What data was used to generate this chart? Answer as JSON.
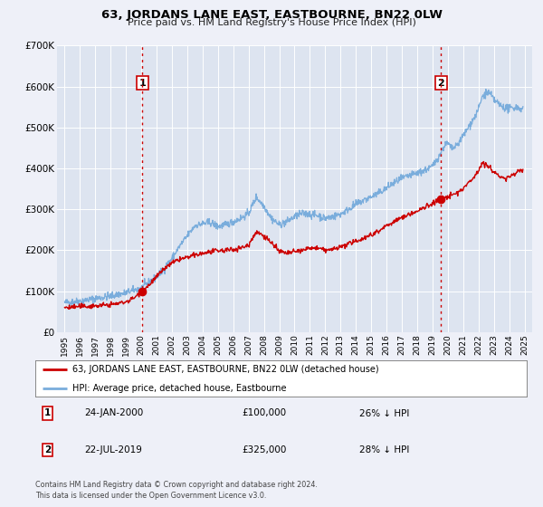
{
  "title": "63, JORDANS LANE EAST, EASTBOURNE, BN22 0LW",
  "subtitle": "Price paid vs. HM Land Registry's House Price Index (HPI)",
  "background_color": "#eef0f8",
  "plot_bg_color": "#dde4f0",
  "legend_label_red": "63, JORDANS LANE EAST, EASTBOURNE, BN22 0LW (detached house)",
  "legend_label_blue": "HPI: Average price, detached house, Eastbourne",
  "footnote1": "Contains HM Land Registry data © Crown copyright and database right 2024.",
  "footnote2": "This data is licensed under the Open Government Licence v3.0.",
  "marker1_date": "24-JAN-2000",
  "marker1_price": "£100,000",
  "marker1_hpi": "26% ↓ HPI",
  "marker1_x": 2000.07,
  "marker1_y": 100000,
  "marker2_date": "22-JUL-2019",
  "marker2_price": "£325,000",
  "marker2_hpi": "28% ↓ HPI",
  "marker2_x": 2019.55,
  "marker2_y": 325000,
  "ylim": [
    0,
    700000
  ],
  "xlim_start": 1994.5,
  "xlim_end": 2025.5,
  "yticks": [
    0,
    100000,
    200000,
    300000,
    400000,
    500000,
    600000,
    700000
  ],
  "ytick_labels": [
    "£0",
    "£100K",
    "£200K",
    "£300K",
    "£400K",
    "£500K",
    "£600K",
    "£700K"
  ],
  "xticks": [
    1995,
    1996,
    1997,
    1998,
    1999,
    2000,
    2001,
    2002,
    2003,
    2004,
    2005,
    2006,
    2007,
    2008,
    2009,
    2010,
    2011,
    2012,
    2013,
    2014,
    2015,
    2016,
    2017,
    2018,
    2019,
    2020,
    2021,
    2022,
    2023,
    2024,
    2025
  ],
  "red_color": "#cc0000",
  "blue_color": "#7aaddc",
  "dashed_color": "#cc0000",
  "grid_color": "#ffffff",
  "marker_box_color": "#cc0000"
}
